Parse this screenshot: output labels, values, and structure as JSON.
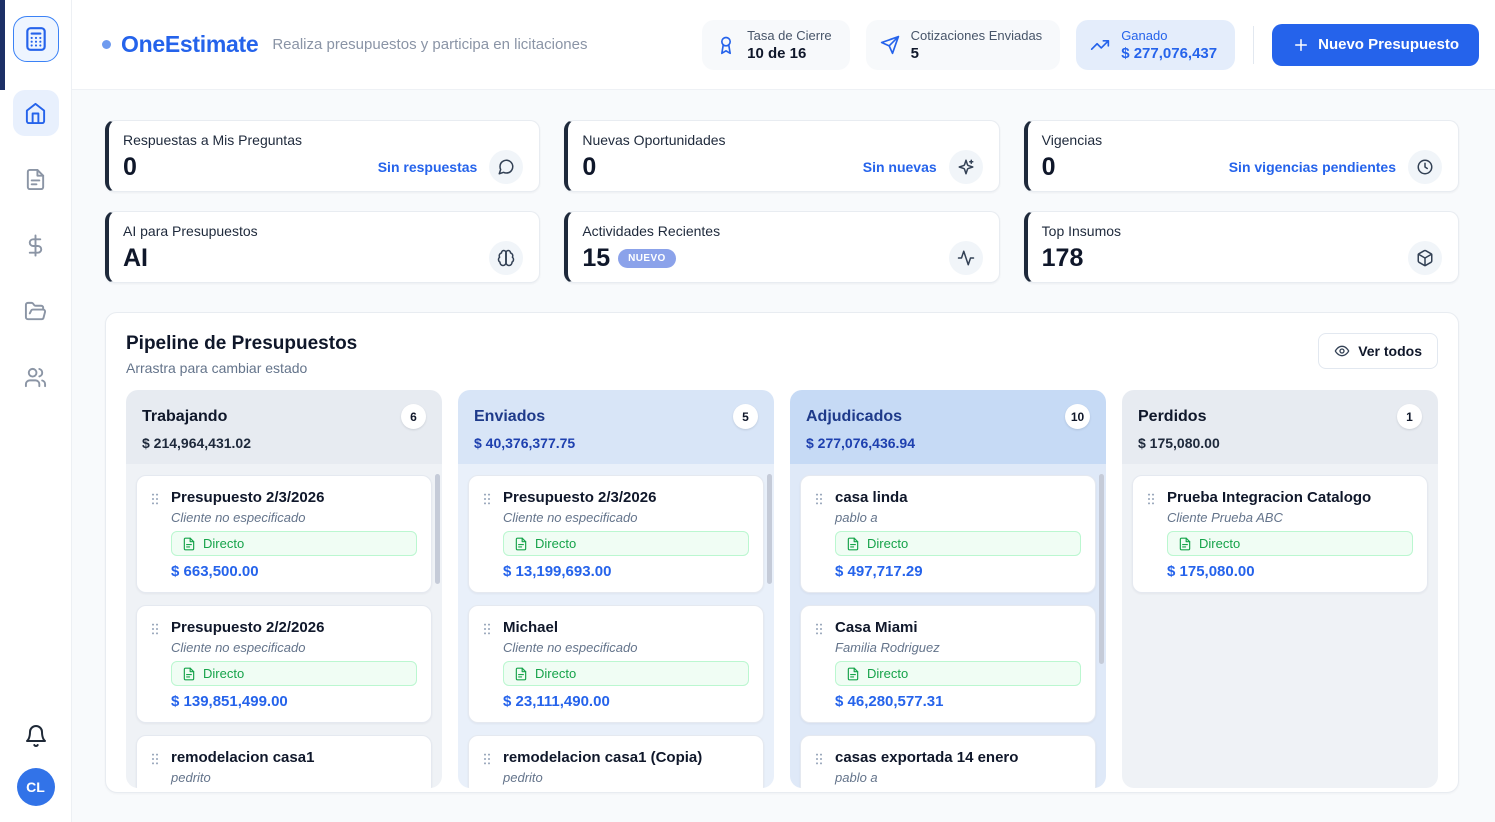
{
  "colors": {
    "accent": "#2563eb",
    "accent_light": "#e4edfb",
    "nuevo_badge": "#8ba2ea",
    "card_accent_border": "#1e293b",
    "directo_text": "#16a34a",
    "directo_bg": "#f0fdf4",
    "directo_border": "#bbf7d0",
    "avatar_bg": "#3273e8"
  },
  "sidebar": {
    "avatar_initials": "CL",
    "items": [
      {
        "icon": "home",
        "active": true
      },
      {
        "icon": "file",
        "active": false
      },
      {
        "icon": "dollar",
        "active": false
      },
      {
        "icon": "folder",
        "active": false
      },
      {
        "icon": "users",
        "active": false
      }
    ]
  },
  "header": {
    "app_name": "OneEstimate",
    "tagline": "Realiza presupuestos y participa en licitaciones",
    "stats": [
      {
        "icon": "award",
        "label": "Tasa de Cierre",
        "value": "10 de 16",
        "highlight": false
      },
      {
        "icon": "send",
        "label": "Cotizaciones Enviadas",
        "value": "5",
        "highlight": false
      },
      {
        "icon": "trending",
        "label": "Ganado",
        "value": "$ 277,076,437",
        "highlight": true
      }
    ],
    "new_button_label": "Nuevo Presupuesto"
  },
  "summary_cards": [
    {
      "icon": "chat",
      "title": "Respuestas a Mis Preguntas",
      "value": "0",
      "link": "Sin respuestas"
    },
    {
      "icon": "sparkles",
      "title": "Nuevas Oportunidades",
      "value": "0",
      "link": "Sin nuevas"
    },
    {
      "icon": "clock",
      "title": "Vigencias",
      "value": "0",
      "link": "Sin vigencias pendientes"
    },
    {
      "icon": "brain",
      "title": "AI para Presupuestos",
      "value": "AI"
    },
    {
      "icon": "activity",
      "title": "Actividades Recientes",
      "value": "15",
      "badge": "NUEVO"
    },
    {
      "icon": "package",
      "title": "Top Insumos",
      "value": "178"
    }
  ],
  "pipeline": {
    "title": "Pipeline de Presupuestos",
    "subtitle": "Arrastra para cambiar estado",
    "view_all": "Ver todos",
    "columns": [
      {
        "name": "Trabajando",
        "count": "6",
        "total": "$ 214,964,431.02",
        "theme": "gray",
        "cards": [
          {
            "title": "Presupuesto 2/3/2026",
            "client": "Cliente no especificado",
            "channel": "Directo",
            "amount": "$ 663,500.00"
          },
          {
            "title": "Presupuesto 2/2/2026",
            "client": "Cliente no especificado",
            "channel": "Directo",
            "amount": "$ 139,851,499.00"
          },
          {
            "title": "remodelacion casa1",
            "client": "pedrito"
          }
        ]
      },
      {
        "name": "Enviados",
        "count": "5",
        "total": "$ 40,376,377.75",
        "theme": "blue",
        "cards": [
          {
            "title": "Presupuesto 2/3/2026",
            "client": "Cliente no especificado",
            "channel": "Directo",
            "amount": "$ 13,199,693.00"
          },
          {
            "title": "Michael",
            "client": "Cliente no especificado",
            "channel": "Directo",
            "amount": "$ 23,111,490.00"
          },
          {
            "title": "remodelacion casa1 (Copia)",
            "client": "pedrito"
          }
        ]
      },
      {
        "name": "Adjudicados",
        "count": "10",
        "total": "$ 277,076,436.94",
        "theme": "blue2",
        "cards": [
          {
            "title": "casa linda",
            "client": "pablo a",
            "channel": "Directo",
            "amount": "$ 497,717.29"
          },
          {
            "title": "Casa Miami",
            "client": "Familia Rodriguez",
            "channel": "Directo",
            "amount": "$ 46,280,577.31"
          },
          {
            "title": "casas exportada 14 enero",
            "client": "pablo a"
          }
        ]
      },
      {
        "name": "Perdidos",
        "count": "1",
        "total": "$ 175,080.00",
        "theme": "gray",
        "cards": [
          {
            "title": "Prueba Integracion Catalogo",
            "client": "Cliente Prueba ABC",
            "channel": "Directo",
            "amount": "$ 175,080.00"
          }
        ]
      }
    ]
  }
}
